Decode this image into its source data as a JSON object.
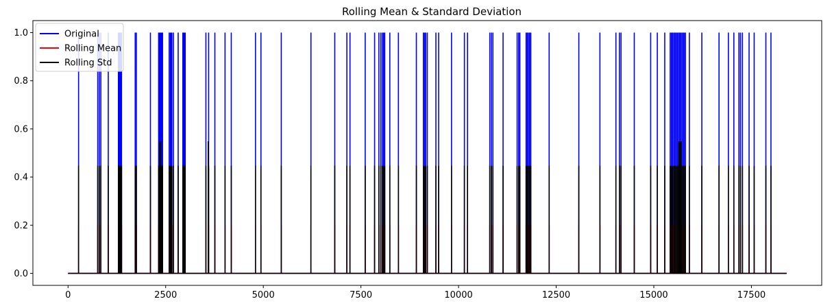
{
  "chart_data": {
    "type": "line",
    "title": "Rolling Mean & Standard Deviation",
    "xlabel": "",
    "ylabel": "",
    "xlim": [
      -900,
      19300
    ],
    "ylim": [
      -0.05,
      1.05
    ],
    "x_ticks": [
      0,
      2500,
      5000,
      7500,
      10000,
      12500,
      15000,
      17500
    ],
    "x_tick_labels": [
      "0",
      "2500",
      "5000",
      "7500",
      "10000",
      "12500",
      "15000",
      "17500"
    ],
    "y_ticks": [
      0.0,
      0.2,
      0.4,
      0.6,
      0.8,
      1.0
    ],
    "y_tick_labels": [
      "0.0",
      "0.2",
      "0.4",
      "0.6",
      "0.8",
      "1.0"
    ],
    "grid": false,
    "legend_position": "top-left",
    "x_range": [
      0,
      18400
    ],
    "series": [
      {
        "name": "Original",
        "color": "#0000ff",
        "baseline": 0,
        "spike_value": 1.0,
        "spike_x": [
          270,
          760,
          800,
          840,
          1030,
          1290,
          1310,
          1330,
          1350,
          1370,
          1720,
          1750,
          2110,
          2320,
          2340,
          2360,
          2380,
          2400,
          2420,
          2590,
          2620,
          2640,
          2660,
          2700,
          2820,
          2940,
          2960,
          2980,
          3000,
          3530,
          3600,
          3760,
          4020,
          4180,
          4800,
          4940,
          5460,
          6220,
          6830,
          7140,
          7220,
          7610,
          7850,
          7960,
          8010,
          8050,
          8080,
          8110,
          8240,
          8460,
          8920,
          9100,
          9130,
          9160,
          9200,
          9420,
          9490,
          9820,
          10150,
          10230,
          10800,
          10840,
          10880,
          11140,
          11500,
          11540,
          11570,
          11730,
          11760,
          11790,
          11820,
          11850,
          12320,
          13080,
          13620,
          14030,
          14120,
          14160,
          14500,
          14920,
          15090,
          15280,
          15420,
          15450,
          15480,
          15510,
          15540,
          15570,
          15600,
          15630,
          15660,
          15690,
          15720,
          15750,
          15780,
          15810,
          15910,
          16230,
          16670,
          16910,
          17050,
          17180,
          17220,
          17270,
          17440,
          17570,
          17870,
          18000
        ]
      },
      {
        "name": "Rolling Mean",
        "color": "#ff0000",
        "baseline": 0,
        "spike_value": 0.2,
        "spike_x": [
          270,
          760,
          800,
          840,
          1030,
          1290,
          1310,
          1330,
          1350,
          1370,
          1720,
          1750,
          2110,
          2320,
          2340,
          2360,
          2380,
          2400,
          2420,
          2590,
          2620,
          2640,
          2660,
          2700,
          2820,
          2940,
          2960,
          2980,
          3000,
          3530,
          3600,
          3760,
          4020,
          4180,
          4800,
          4940,
          5460,
          6220,
          6830,
          7140,
          7220,
          7610,
          7850,
          7960,
          8010,
          8050,
          8080,
          8110,
          8240,
          8460,
          8920,
          9100,
          9130,
          9160,
          9200,
          9420,
          9490,
          9820,
          10150,
          10230,
          10800,
          10840,
          10880,
          11140,
          11500,
          11540,
          11570,
          11730,
          11760,
          11790,
          11820,
          11850,
          12320,
          13080,
          13620,
          14030,
          14120,
          14160,
          14500,
          14920,
          15090,
          15280,
          15420,
          15450,
          15480,
          15510,
          15540,
          15570,
          15600,
          15630,
          15660,
          15690,
          15720,
          15750,
          15780,
          15810,
          15910,
          16230,
          16670,
          16910,
          17050,
          17180,
          17220,
          17270,
          17440,
          17570,
          17870,
          18000
        ]
      },
      {
        "name": "Rolling Std",
        "color": "#000000",
        "baseline": 0,
        "spike_value": 0.447,
        "spike_x": [
          270,
          760,
          800,
          840,
          1030,
          1290,
          1310,
          1330,
          1350,
          1370,
          1720,
          1750,
          2110,
          2320,
          2340,
          2360,
          2380,
          2400,
          2420,
          2590,
          2620,
          2640,
          2660,
          2700,
          2820,
          2940,
          2960,
          2980,
          3000,
          3530,
          3600,
          3760,
          4020,
          4180,
          4800,
          4940,
          5460,
          6220,
          6830,
          7140,
          7220,
          7610,
          7850,
          7960,
          8010,
          8050,
          8080,
          8110,
          8240,
          8460,
          8920,
          9100,
          9130,
          9160,
          9200,
          9420,
          9490,
          9820,
          10150,
          10230,
          10800,
          10840,
          10880,
          11140,
          11500,
          11540,
          11570,
          11730,
          11760,
          11790,
          11820,
          11850,
          12320,
          13080,
          13620,
          14030,
          14120,
          14160,
          14500,
          14920,
          15090,
          15280,
          15420,
          15450,
          15480,
          15510,
          15540,
          15570,
          15600,
          15630,
          15660,
          15690,
          15720,
          15750,
          15780,
          15810,
          15910,
          16230,
          16670,
          16910,
          17050,
          17180,
          17220,
          17270,
          17440,
          17570,
          17870,
          18000
        ],
        "high_spike_value": 0.548,
        "high_spike_x": [
          2350,
          2370,
          3590,
          15640,
          15670,
          15700
        ]
      }
    ]
  }
}
